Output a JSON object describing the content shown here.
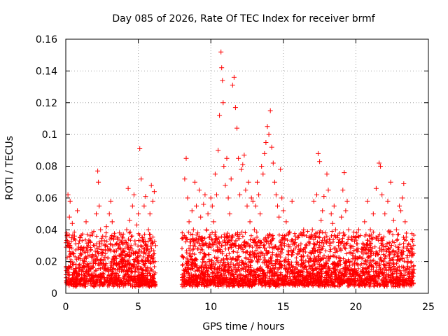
{
  "chart_data": {
    "type": "scatter",
    "title": "Day 085 of 2026, Rate Of TEC Index for receiver brmf",
    "xlabel": "GPS time / hours",
    "ylabel": "ROTI / TECUs",
    "xlim": [
      0,
      25
    ],
    "ylim": [
      0,
      0.16
    ],
    "x_ticks": [
      "0",
      "5",
      "10",
      "15",
      "20",
      "25"
    ],
    "y_ticks": [
      "0",
      "0.02",
      "0.04",
      "0.06",
      "0.08",
      "0.1",
      "0.12",
      "0.14",
      "0.16"
    ],
    "grid": true,
    "marker": "plus",
    "color": "#ff0000",
    "series": [
      {
        "x": [
          0.1,
          0.15,
          0.2,
          0.25,
          0.3,
          0.35,
          0.4,
          0.45,
          0.5,
          0.55,
          0.6,
          0.7,
          0.8,
          0.9,
          1.0,
          1.1,
          1.2,
          1.3,
          1.4,
          1.5,
          1.6,
          1.7,
          1.8,
          1.9,
          2.0,
          2.1,
          2.2,
          2.25,
          2.3,
          2.4,
          2.5,
          2.6,
          2.7,
          2.8,
          2.9,
          3.0,
          3.1,
          3.2,
          3.3,
          3.4,
          3.5,
          3.6,
          3.7,
          3.8,
          3.9,
          4.0,
          4.1,
          4.2,
          4.3,
          4.4,
          4.5,
          4.6,
          4.7,
          4.8,
          4.9,
          5.0,
          5.1,
          5.2,
          5.3,
          5.4,
          5.5,
          5.6,
          5.7,
          5.8,
          5.9,
          6.0,
          6.1,
          6.2
        ],
        "y": [
          0.014,
          0.062,
          0.03,
          0.048,
          0.058,
          0.02,
          0.035,
          0.044,
          0.012,
          0.025,
          0.036,
          0.018,
          0.052,
          0.022,
          0.035,
          0.015,
          0.028,
          0.02,
          0.045,
          0.026,
          0.014,
          0.032,
          0.038,
          0.019,
          0.03,
          0.05,
          0.077,
          0.07,
          0.055,
          0.04,
          0.024,
          0.018,
          0.03,
          0.042,
          0.016,
          0.05,
          0.058,
          0.045,
          0.034,
          0.022,
          0.018,
          0.028,
          0.038,
          0.024,
          0.015,
          0.02,
          0.032,
          0.04,
          0.066,
          0.046,
          0.03,
          0.055,
          0.062,
          0.025,
          0.043,
          0.05,
          0.091,
          0.072,
          0.035,
          0.055,
          0.061,
          0.028,
          0.04,
          0.05,
          0.068,
          0.058,
          0.064,
          0.03
        ]
      },
      {
        "x": [
          8.1,
          8.2,
          8.3,
          8.4,
          8.5,
          8.6,
          8.7,
          8.8,
          8.9,
          9.0,
          9.1,
          9.2,
          9.3,
          9.4,
          9.5,
          9.6,
          9.7,
          9.8,
          9.9,
          10.0,
          10.1,
          10.2,
          10.3,
          10.4,
          10.5,
          10.6,
          10.7,
          10.75,
          10.8,
          10.85,
          10.9,
          11.0,
          11.1,
          11.2,
          11.3,
          11.4,
          11.5,
          11.6,
          11.7,
          11.8,
          11.9,
          12.0,
          12.1,
          12.2,
          12.3,
          12.4,
          12.5,
          12.6,
          12.7,
          12.8,
          12.9,
          13.0,
          13.1,
          13.2,
          13.3,
          13.4,
          13.5,
          13.6,
          13.7,
          13.8,
          13.9,
          14.0,
          14.1,
          14.2,
          14.3,
          14.4,
          14.5,
          14.6,
          14.7,
          14.8,
          14.9,
          15.0,
          15.2,
          15.4,
          15.6,
          15.8,
          16.0,
          16.2,
          16.4,
          16.6,
          16.8
        ],
        "y": [
          0.035,
          0.072,
          0.085,
          0.06,
          0.045,
          0.03,
          0.052,
          0.04,
          0.07,
          0.055,
          0.038,
          0.065,
          0.048,
          0.03,
          0.056,
          0.062,
          0.04,
          0.05,
          0.035,
          0.06,
          0.055,
          0.045,
          0.075,
          0.062,
          0.09,
          0.112,
          0.152,
          0.142,
          0.134,
          0.12,
          0.08,
          0.068,
          0.085,
          0.06,
          0.05,
          0.072,
          0.131,
          0.136,
          0.117,
          0.104,
          0.085,
          0.062,
          0.078,
          0.081,
          0.087,
          0.065,
          0.055,
          0.07,
          0.045,
          0.06,
          0.058,
          0.04,
          0.055,
          0.07,
          0.062,
          0.05,
          0.08,
          0.075,
          0.088,
          0.095,
          0.105,
          0.1,
          0.115,
          0.092,
          0.082,
          0.07,
          0.062,
          0.055,
          0.048,
          0.078,
          0.06,
          0.052,
          0.045,
          0.038,
          0.058,
          0.032,
          0.025,
          0.028,
          0.04,
          0.03,
          0.022
        ]
      },
      {
        "x": [
          16.9,
          17.0,
          17.1,
          17.2,
          17.3,
          17.4,
          17.5,
          17.6,
          17.7,
          17.8,
          17.9,
          18.0,
          18.1,
          18.2,
          18.3,
          18.4,
          18.5,
          18.6,
          18.7,
          18.8,
          18.9,
          19.0,
          19.1,
          19.2,
          19.3,
          19.4,
          19.5,
          19.6,
          19.8,
          20.0,
          20.2,
          20.4,
          20.6,
          20.8,
          21.0,
          21.2,
          21.4,
          21.6,
          21.7,
          21.8,
          22.0,
          22.2,
          22.4,
          22.6,
          22.8,
          23.0,
          23.1,
          23.2,
          23.3,
          23.4,
          23.5,
          23.6,
          23.8,
          24.0
        ],
        "y": [
          0.025,
          0.04,
          0.058,
          0.035,
          0.062,
          0.088,
          0.083,
          0.046,
          0.052,
          0.061,
          0.038,
          0.075,
          0.065,
          0.03,
          0.05,
          0.044,
          0.055,
          0.04,
          0.035,
          0.032,
          0.028,
          0.048,
          0.065,
          0.076,
          0.052,
          0.058,
          0.04,
          0.03,
          0.025,
          0.035,
          0.04,
          0.028,
          0.045,
          0.058,
          0.04,
          0.05,
          0.066,
          0.082,
          0.08,
          0.062,
          0.05,
          0.058,
          0.07,
          0.046,
          0.04,
          0.055,
          0.052,
          0.06,
          0.069,
          0.045,
          0.028,
          0.02,
          0.025,
          0.015
        ]
      }
    ]
  }
}
